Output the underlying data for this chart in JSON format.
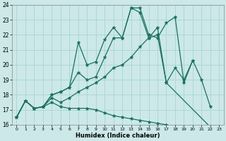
{
  "xlabel": "Humidex (Indice chaleur)",
  "bg_color": "#cce8e8",
  "grid_color": "#aad4d4",
  "line_color": "#1a7060",
  "xlim_min": -0.5,
  "xlim_max": 23.5,
  "ylim_min": 16,
  "ylim_max": 24,
  "xticks": [
    0,
    1,
    2,
    3,
    4,
    5,
    6,
    7,
    8,
    9,
    10,
    11,
    12,
    13,
    14,
    15,
    16,
    17,
    18,
    19,
    20,
    21,
    22,
    23
  ],
  "yticks": [
    16,
    17,
    18,
    19,
    20,
    21,
    22,
    23,
    24
  ],
  "lines": [
    {
      "x": [
        0,
        1,
        2,
        3,
        4,
        5,
        6,
        7,
        8,
        9,
        10,
        11,
        12,
        13,
        14,
        15,
        16,
        17,
        18,
        19,
        20,
        21,
        22
      ],
      "y": [
        16.5,
        17.6,
        17.1,
        17.2,
        18.0,
        18.2,
        18.5,
        21.5,
        20.0,
        20.2,
        21.7,
        22.5,
        21.8,
        23.8,
        23.8,
        22.0,
        21.8,
        22.8,
        23.2,
        18.8,
        20.3,
        19.0,
        17.2
      ]
    },
    {
      "x": [
        0,
        1,
        2,
        3,
        4,
        5,
        6,
        7,
        8,
        9,
        10,
        11,
        12,
        13,
        14,
        15,
        16,
        17,
        22
      ],
      "y": [
        16.5,
        17.6,
        17.1,
        17.2,
        18.0,
        18.2,
        18.5,
        19.5,
        19.0,
        19.2,
        20.5,
        21.8,
        21.8,
        23.8,
        23.5,
        21.8,
        22.0,
        18.8,
        15.85
      ]
    },
    {
      "x": [
        0,
        1,
        2,
        3,
        4,
        5,
        6,
        7,
        8,
        9,
        10,
        11,
        12,
        13,
        14,
        15,
        16,
        17,
        18,
        19,
        20
      ],
      "y": [
        16.5,
        17.6,
        17.1,
        17.2,
        17.8,
        17.5,
        17.8,
        18.2,
        18.5,
        18.8,
        19.2,
        19.8,
        20.0,
        20.5,
        21.2,
        21.8,
        22.5,
        18.8,
        19.8,
        19.0,
        20.3
      ]
    },
    {
      "x": [
        0,
        1,
        2,
        3,
        4,
        5,
        6,
        7,
        8,
        9,
        10,
        11,
        12,
        13,
        14,
        15,
        16,
        17,
        18,
        19,
        20,
        21,
        22
      ],
      "y": [
        16.5,
        17.6,
        17.1,
        17.2,
        17.5,
        17.2,
        17.1,
        17.1,
        17.1,
        17.0,
        16.8,
        16.6,
        16.5,
        16.4,
        16.3,
        16.2,
        16.1,
        16.0,
        15.9,
        15.88,
        15.85,
        15.82,
        15.8
      ]
    }
  ]
}
